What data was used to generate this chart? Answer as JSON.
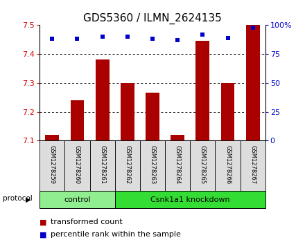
{
  "title": "GDS5360 / ILMN_2624135",
  "samples": [
    "GSM1278259",
    "GSM1278260",
    "GSM1278261",
    "GSM1278262",
    "GSM1278263",
    "GSM1278264",
    "GSM1278265",
    "GSM1278266",
    "GSM1278267"
  ],
  "bar_values": [
    7.12,
    7.24,
    7.38,
    7.3,
    7.265,
    7.12,
    7.445,
    7.3,
    7.5
  ],
  "percentile_values": [
    88,
    88,
    90,
    90,
    88,
    87,
    92,
    89,
    98
  ],
  "bar_color": "#AA0000",
  "percentile_color": "#0000CC",
  "ylim_left": [
    7.1,
    7.5
  ],
  "ylim_right": [
    0,
    100
  ],
  "yticks_left": [
    7.1,
    7.2,
    7.3,
    7.4,
    7.5
  ],
  "yticks_right": [
    0,
    25,
    50,
    75,
    100
  ],
  "control_samples": 3,
  "control_label": "control",
  "knockdown_label": "Csnk1a1 knockdown",
  "protocol_label": "protocol",
  "legend_bar_label": "transformed count",
  "legend_pct_label": "percentile rank within the sample",
  "control_bg": "#90EE90",
  "knockdown_bg": "#33DD33",
  "sample_bg": "#DDDDDD",
  "bar_width": 0.55,
  "title_fontsize": 11,
  "tick_fontsize": 8,
  "sample_fontsize": 6,
  "legend_fontsize": 8,
  "axis_label_color_left": "#CC0000",
  "axis_label_color_right": "#0000CC"
}
